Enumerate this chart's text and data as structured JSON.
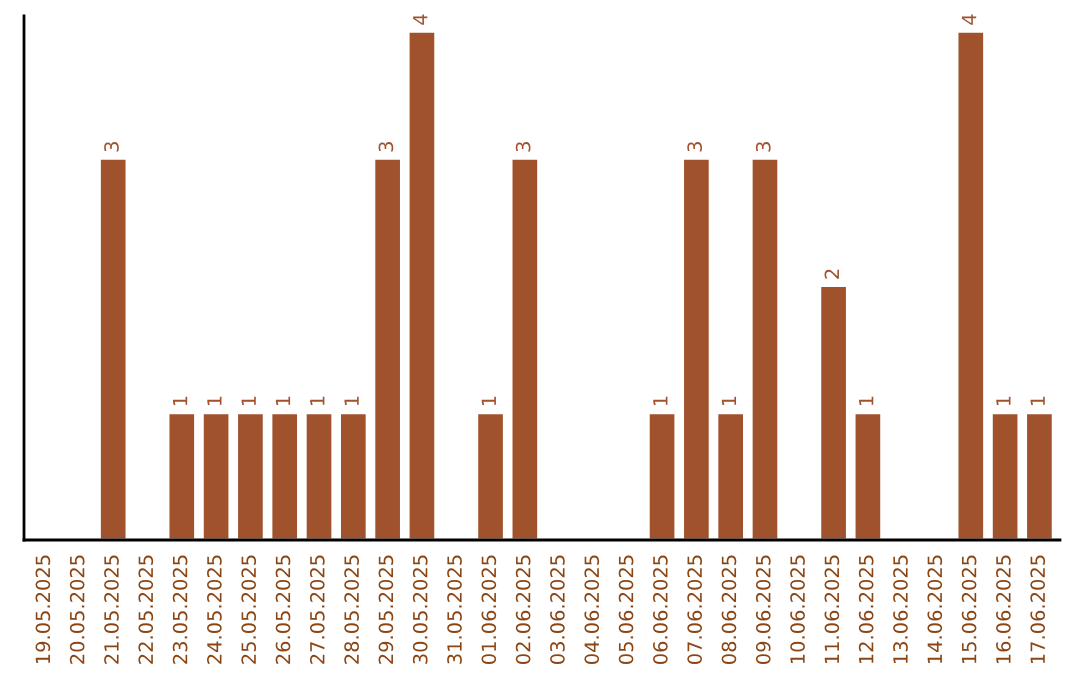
{
  "chart_data": {
    "type": "bar",
    "categories": [
      "19.05.2025",
      "20.05.2025",
      "21.05.2025",
      "22.05.2025",
      "23.05.2025",
      "24.05.2025",
      "25.05.2025",
      "26.05.2025",
      "27.05.2025",
      "28.05.2025",
      "29.05.2025",
      "30.05.2025",
      "31.05.2025",
      "01.06.2025",
      "02.06.2025",
      "03.06.2025",
      "04.06.2025",
      "05.06.2025",
      "06.06.2025",
      "07.06.2025",
      "08.06.2025",
      "09.06.2025",
      "10.06.2025",
      "11.06.2025",
      "12.06.2025",
      "13.06.2025",
      "14.06.2025",
      "15.06.2025",
      "16.06.2025",
      "17.06.2025"
    ],
    "values": [
      0,
      0,
      3,
      0,
      1,
      1,
      1,
      1,
      1,
      1,
      3,
      4,
      0,
      1,
      3,
      0,
      0,
      0,
      1,
      3,
      1,
      3,
      0,
      2,
      1,
      0,
      0,
      4,
      1,
      1
    ],
    "value_labels": [
      null,
      null,
      "3",
      null,
      "1",
      "1",
      "1",
      "1",
      "1",
      "1",
      "3",
      "4",
      null,
      "1",
      "3",
      null,
      null,
      null,
      "1",
      "3",
      "1",
      "3",
      null,
      "2",
      "1",
      null,
      null,
      "4",
      "1",
      "1"
    ],
    "color": "#a0522d",
    "tick_labels": "x",
    "grid": false,
    "legend": false
  }
}
